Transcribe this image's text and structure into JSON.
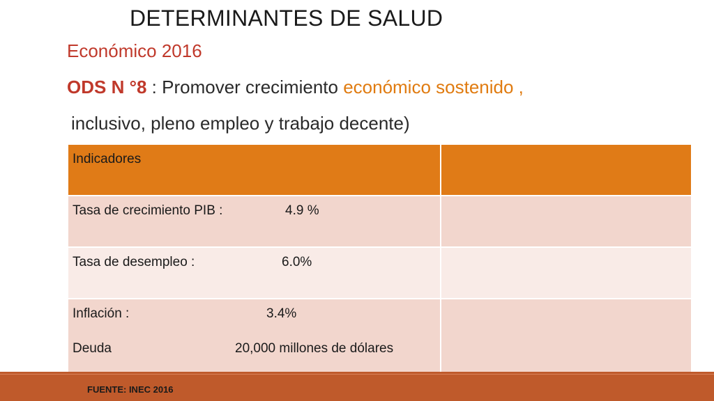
{
  "slide": {
    "title": "DETERMINANTES DE SALUD",
    "subtitle": "Económico 2016",
    "ods": {
      "code": "ODS N °8",
      "separator": " :  ",
      "text_before": "Promover crecimiento ",
      "text_accent": "económico sostenido ,",
      "line2": "inclusivo, pleno empleo y trabajo decente)"
    },
    "table": {
      "header": [
        "Indicadores",
        ""
      ],
      "rows": [
        {
          "label": "Tasa de crecimiento  PIB   :",
          "value": "4.9 %",
          "col2": ""
        },
        {
          "label": "Tasa de desempleo :",
          "value": "6.0%",
          "col2": ""
        },
        {
          "label": "Inflación   :",
          "value": "3.4%",
          "label2": "Deuda",
          "value2": "20,000 millones de dólares",
          "col2": ""
        }
      ]
    },
    "source": "FUENTE:  INEC 2016",
    "colors": {
      "accent_red": "#c0392b",
      "accent_orange": "#e07b10",
      "table_header": "#e07b17",
      "footer_bar": "#bf5a2b"
    }
  }
}
